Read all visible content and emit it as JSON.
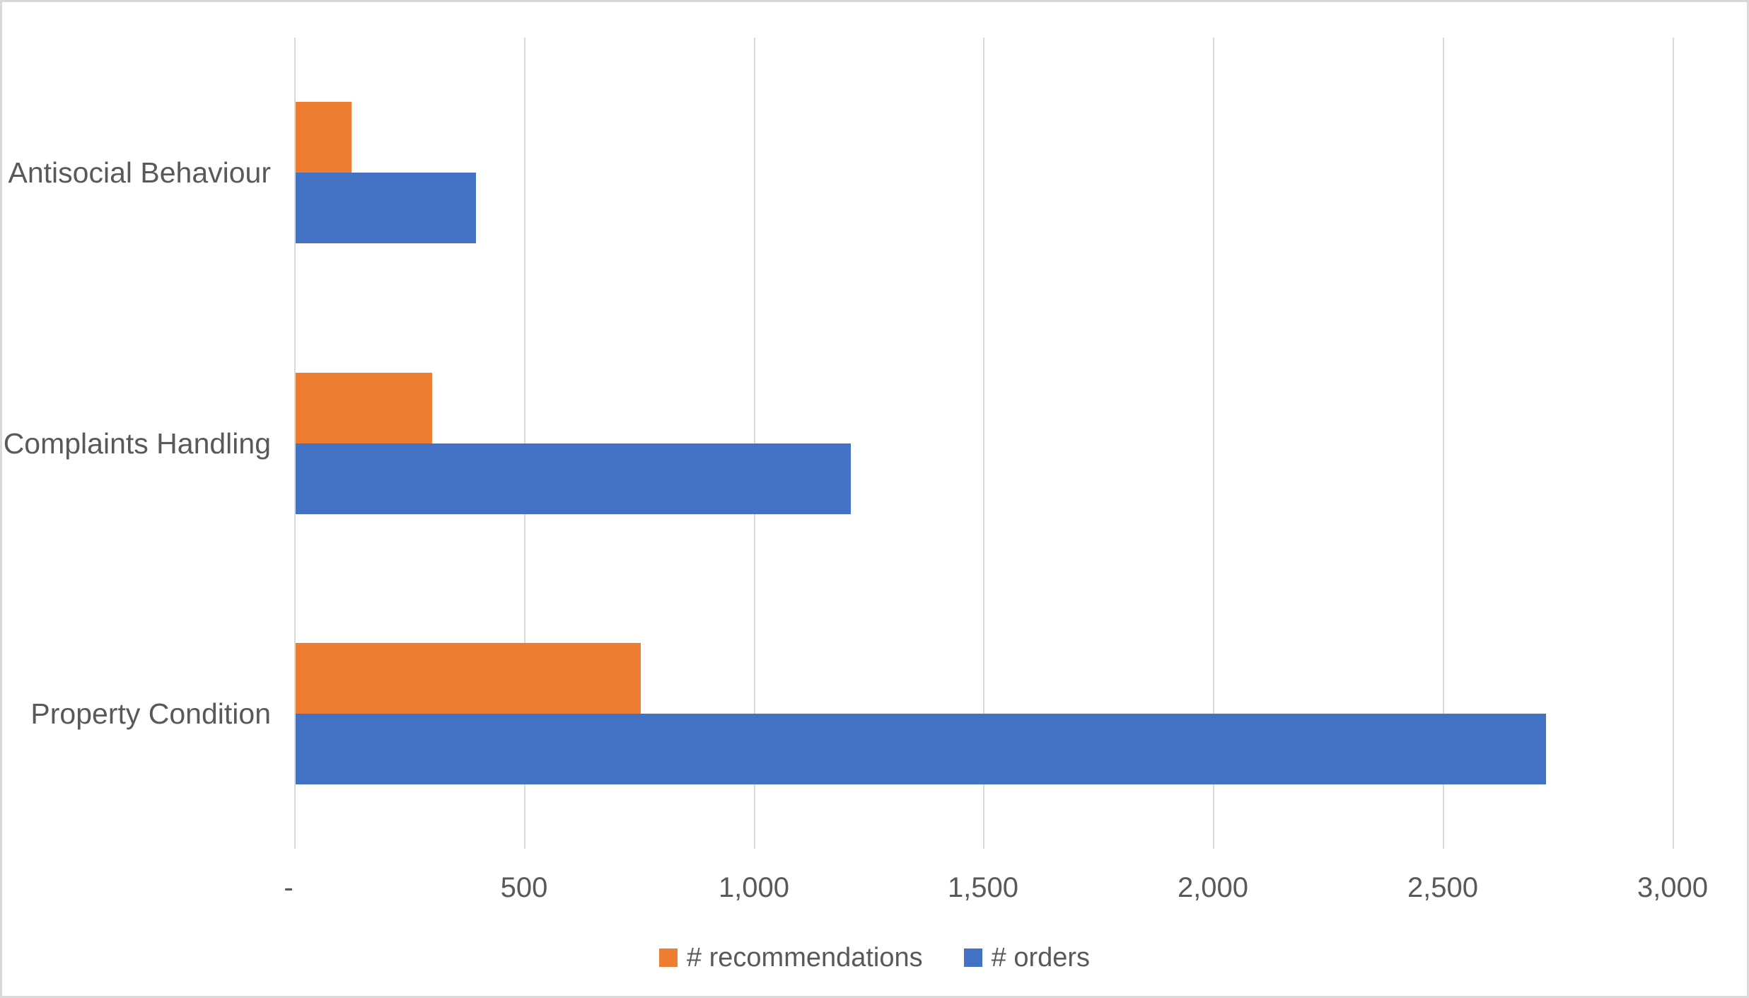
{
  "chart_data": {
    "type": "bar",
    "orientation": "horizontal",
    "title": "",
    "categories": [
      "Antisocial Behaviour",
      "Complaints Handling",
      "Property Condition"
    ],
    "series": [
      {
        "name": "# recommendations",
        "color": "#ED7D31",
        "values": [
          122,
          297,
          751
        ]
      },
      {
        "name": "# orders",
        "color": "#4472C4",
        "values": [
          393,
          1208,
          2722
        ]
      }
    ],
    "x_axis": {
      "min": 0,
      "max": 3000,
      "major_unit": 500,
      "tick_values": [
        0,
        500,
        1000,
        1500,
        2000,
        2500,
        3000
      ],
      "tick_labels": [
        "-",
        "500",
        "1,000",
        "1,500",
        "2,000",
        "2,500",
        "3,000"
      ]
    },
    "grid": true,
    "legend": {
      "position": "bottom",
      "items": [
        {
          "label": "# recommendations",
          "color": "#ED7D31"
        },
        {
          "label": "# orders",
          "color": "#4472C4"
        }
      ]
    },
    "colors": {
      "grid": "#D9D9D9",
      "text": "#595959",
      "frame": "#D9D9D9",
      "background": "#FFFFFF"
    }
  }
}
